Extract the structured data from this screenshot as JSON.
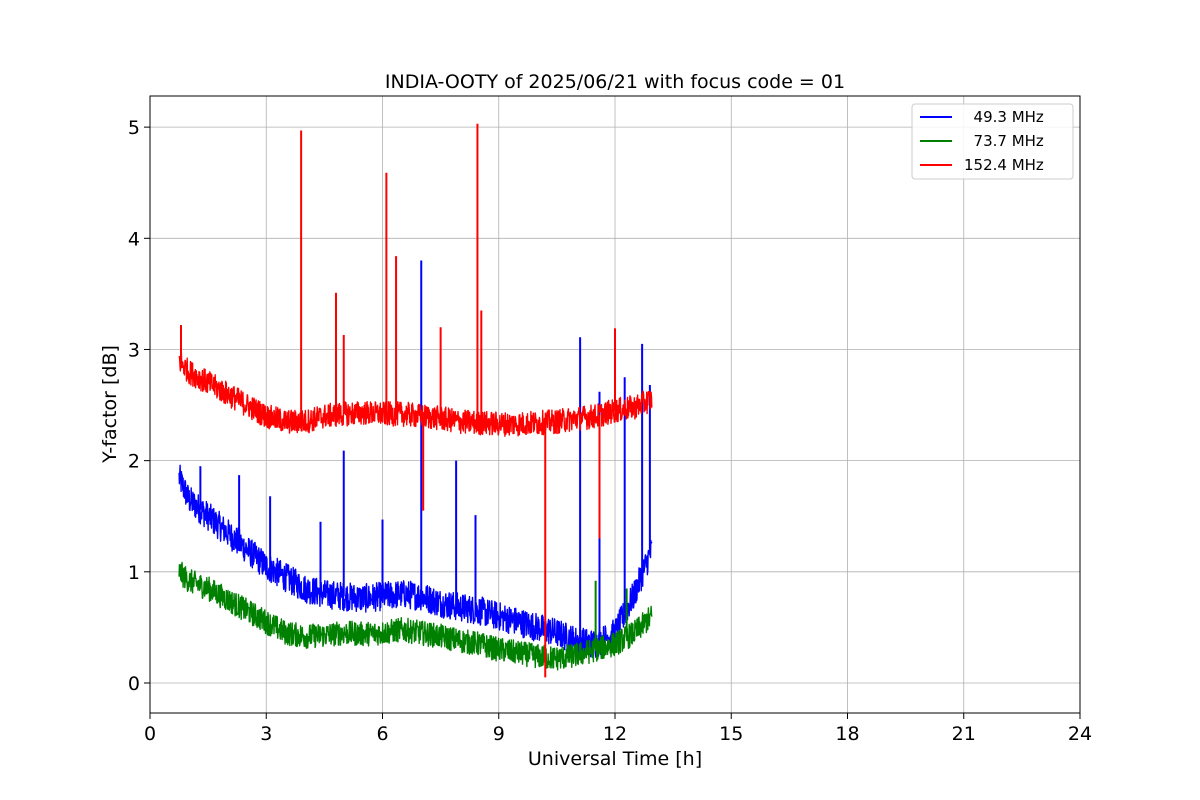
{
  "chart_data": {
    "type": "line",
    "title": "INDIA-OOTY of 2025/06/21 with focus code = 01",
    "xlabel": "Universal Time [h]",
    "ylabel": "Y-factor [dB]",
    "xlim": [
      0,
      24
    ],
    "ylim": [
      -0.27,
      5.28
    ],
    "xticks": [
      0,
      3,
      6,
      9,
      12,
      15,
      18,
      21,
      24
    ],
    "yticks": [
      0,
      1,
      2,
      3,
      4,
      5
    ],
    "grid": true,
    "legend_position": "top-right",
    "series": [
      {
        "name": "  49.3 MHz",
        "color": "#0000ff",
        "x": [
          0.75,
          1.0,
          1.5,
          2.0,
          2.5,
          3.0,
          3.5,
          4.0,
          4.5,
          5.0,
          5.5,
          6.0,
          6.5,
          7.0,
          7.5,
          8.0,
          8.5,
          9.0,
          9.5,
          10.0,
          10.5,
          11.0,
          11.5,
          12.0,
          12.5,
          12.95
        ],
        "y": [
          1.85,
          1.65,
          1.5,
          1.35,
          1.2,
          1.05,
          0.95,
          0.85,
          0.8,
          0.78,
          0.76,
          0.78,
          0.8,
          0.78,
          0.72,
          0.68,
          0.65,
          0.6,
          0.55,
          0.5,
          0.45,
          0.38,
          0.35,
          0.45,
          0.8,
          1.2
        ],
        "noise": 0.13,
        "spikes": [
          [
            1.3,
            1.95
          ],
          [
            2.3,
            1.87
          ],
          [
            3.1,
            1.68
          ],
          [
            4.4,
            1.45
          ],
          [
            5.0,
            2.09
          ],
          [
            6.0,
            1.47
          ],
          [
            7.0,
            3.8
          ],
          [
            7.9,
            2.0
          ],
          [
            8.4,
            1.51
          ],
          [
            11.1,
            3.11
          ],
          [
            11.6,
            2.62
          ],
          [
            12.25,
            2.75
          ],
          [
            12.7,
            3.05
          ],
          [
            12.9,
            2.68
          ]
        ]
      },
      {
        "name": "  73.7 MHz",
        "color": "#008000",
        "x": [
          0.75,
          1.0,
          1.5,
          2.0,
          2.5,
          3.0,
          3.5,
          4.0,
          4.5,
          5.0,
          5.5,
          6.0,
          6.5,
          7.0,
          7.5,
          8.0,
          8.5,
          9.0,
          9.5,
          10.0,
          10.5,
          11.0,
          11.5,
          12.0,
          12.5,
          12.95
        ],
        "y": [
          1.0,
          0.92,
          0.85,
          0.75,
          0.65,
          0.55,
          0.45,
          0.42,
          0.43,
          0.45,
          0.44,
          0.45,
          0.48,
          0.45,
          0.42,
          0.38,
          0.35,
          0.3,
          0.27,
          0.24,
          0.22,
          0.25,
          0.3,
          0.35,
          0.45,
          0.6
        ],
        "noise": 0.11,
        "spikes": [
          [
            11.5,
            0.92
          ],
          [
            12.3,
            0.85
          ]
        ]
      },
      {
        "name": "152.4 MHz",
        "color": "#ff0000",
        "x": [
          0.75,
          1.0,
          1.5,
          2.0,
          2.5,
          3.0,
          3.5,
          4.0,
          4.5,
          5.0,
          5.5,
          6.0,
          6.5,
          7.0,
          7.5,
          8.0,
          8.5,
          9.0,
          9.5,
          10.0,
          10.5,
          11.0,
          11.5,
          12.0,
          12.5,
          12.95
        ],
        "y": [
          2.9,
          2.8,
          2.7,
          2.6,
          2.5,
          2.4,
          2.35,
          2.35,
          2.4,
          2.42,
          2.43,
          2.42,
          2.42,
          2.4,
          2.38,
          2.35,
          2.34,
          2.33,
          2.33,
          2.34,
          2.35,
          2.38,
          2.4,
          2.45,
          2.48,
          2.55
        ],
        "noise": 0.11,
        "spikes": [
          [
            0.8,
            3.22
          ],
          [
            3.9,
            4.97
          ],
          [
            4.8,
            3.51
          ],
          [
            5.0,
            3.13
          ],
          [
            6.1,
            4.59
          ],
          [
            6.35,
            3.84
          ],
          [
            7.5,
            3.2
          ],
          [
            8.45,
            5.03
          ],
          [
            8.55,
            3.35
          ],
          [
            12.0,
            3.19
          ]
        ],
        "dips": [
          [
            7.05,
            1.55
          ],
          [
            10.2,
            0.05
          ],
          [
            11.6,
            1.3
          ]
        ]
      }
    ]
  }
}
